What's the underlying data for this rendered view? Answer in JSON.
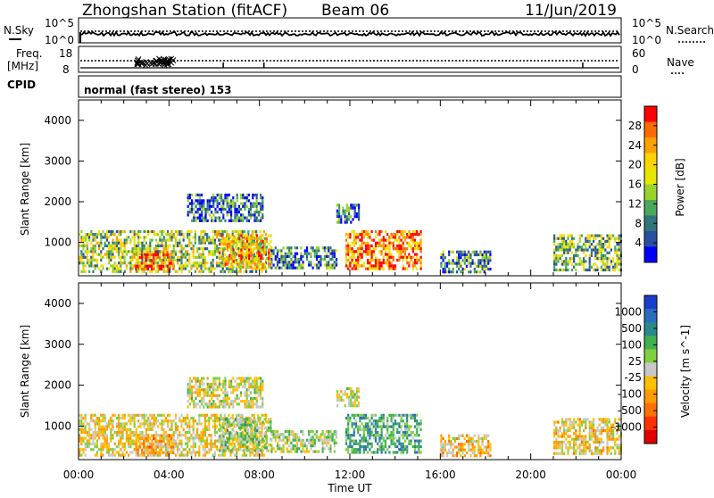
{
  "header": {
    "title": "Zhongshan Station (fitACF)",
    "beam": "Beam 06",
    "date": "11/Jun/2019"
  },
  "noise_panel": {
    "left_label": "N.Sky",
    "right_label": "N.Search",
    "left_ticks": [
      "10^5",
      "10^0"
    ],
    "right_ticks": [
      "10^5",
      "10^0"
    ]
  },
  "freq_panel": {
    "left_label_1": "Freq.",
    "left_label_2": "[MHz]",
    "left_ticks": [
      "18",
      "8"
    ],
    "right_label": "Nave",
    "right_ticks": [
      "60",
      "0"
    ]
  },
  "cpid_panel": {
    "label": "CPID",
    "text": "normal (fast stereo) 153"
  },
  "x_axis": {
    "label": "Time UT",
    "ticks": [
      "00:00",
      "04:00",
      "08:00",
      "12:00",
      "16:00",
      "20:00",
      "00:00"
    ]
  },
  "power_panel": {
    "ylabel": "Slant Range [km]",
    "yticks": [
      "4000",
      "3000",
      "2000",
      "1000"
    ],
    "colorbar_label": "Power [dB]",
    "colorbar_ticks": [
      "28",
      "24",
      "20",
      "16",
      "12",
      "8",
      "4"
    ],
    "colorbar_colors": [
      "#ff0000",
      "#ff6a00",
      "#ffa100",
      "#ffd400",
      "#e6e600",
      "#9bd229",
      "#4aa85a",
      "#30747c",
      "#2a4fa0",
      "#0000ff"
    ]
  },
  "velocity_panel": {
    "ylabel": "Slant Range [km]",
    "yticks": [
      "4000",
      "3000",
      "2000",
      "1000"
    ],
    "colorbar_label": "Velocity [m s^-1]",
    "colorbar_ticks": [
      "1000",
      "500",
      "100",
      "25",
      "-25",
      "-100",
      "-500",
      "-1000"
    ],
    "colorbar_colors": [
      "#1a3cd0",
      "#2a6cc0",
      "#2a8a8a",
      "#40b050",
      "#80d040",
      "#c8c8c8",
      "#ffc000",
      "#ff9a00",
      "#ff7000",
      "#ff3000",
      "#e00000"
    ]
  },
  "chart_data": [
    {
      "type": "heatmap",
      "title": "Power [dB]",
      "xlabel": "Time UT",
      "ylabel": "Slant Range [km]",
      "x_range_hours": [
        0,
        24
      ],
      "y_range_km": [
        180,
        4500
      ],
      "color_range": [
        0,
        30
      ],
      "regions": [
        {
          "t_start": 0.0,
          "t_end": 8.3,
          "r_min": 300,
          "r_max": 1300,
          "power_dB": 14
        },
        {
          "t_start": 2.5,
          "t_end": 4.2,
          "r_min": 350,
          "r_max": 800,
          "power_dB": 24
        },
        {
          "t_start": 6.2,
          "t_end": 8.5,
          "r_min": 400,
          "r_max": 1200,
          "power_dB": 20
        },
        {
          "t_start": 4.8,
          "t_end": 8.1,
          "r_min": 1500,
          "r_max": 2200,
          "power_dB": 6
        },
        {
          "t_start": 8.5,
          "t_end": 11.4,
          "r_min": 350,
          "r_max": 900,
          "power_dB": 8
        },
        {
          "t_start": 11.4,
          "t_end": 12.4,
          "r_min": 1500,
          "r_max": 1950,
          "power_dB": 6
        },
        {
          "t_start": 11.8,
          "t_end": 15.1,
          "r_min": 350,
          "r_max": 1300,
          "power_dB": 24
        },
        {
          "t_start": 16.0,
          "t_end": 18.2,
          "r_min": 300,
          "r_max": 800,
          "power_dB": 8
        },
        {
          "t_start": 21.0,
          "t_end": 24.0,
          "r_min": 300,
          "r_max": 1200,
          "power_dB": 12
        }
      ]
    },
    {
      "type": "heatmap",
      "title": "Velocity [m s^-1]",
      "xlabel": "Time UT",
      "ylabel": "Slant Range [km]",
      "x_range_hours": [
        0,
        24
      ],
      "y_range_km": [
        180,
        4500
      ],
      "color_range": [
        -1000,
        1000
      ],
      "regions": [
        {
          "t_start": 0.0,
          "t_end": 8.3,
          "r_min": 300,
          "r_max": 1300,
          "velocity_ms": -100
        },
        {
          "t_start": 2.5,
          "t_end": 4.2,
          "r_min": 350,
          "r_max": 800,
          "velocity_ms": -300
        },
        {
          "t_start": 6.2,
          "t_end": 8.5,
          "r_min": 400,
          "r_max": 1200,
          "velocity_ms": 150
        },
        {
          "t_start": 4.8,
          "t_end": 8.1,
          "r_min": 1500,
          "r_max": 2200,
          "velocity_ms": 0
        },
        {
          "t_start": 8.5,
          "t_end": 11.4,
          "r_min": 350,
          "r_max": 900,
          "velocity_ms": 100
        },
        {
          "t_start": 11.4,
          "t_end": 12.4,
          "r_min": 1500,
          "r_max": 1950,
          "velocity_ms": 0
        },
        {
          "t_start": 11.8,
          "t_end": 15.1,
          "r_min": 350,
          "r_max": 1300,
          "velocity_ms": 400
        },
        {
          "t_start": 16.0,
          "t_end": 18.2,
          "r_min": 300,
          "r_max": 800,
          "velocity_ms": -200
        },
        {
          "t_start": 21.0,
          "t_end": 24.0,
          "r_min": 300,
          "r_max": 1200,
          "velocity_ms": -150
        }
      ]
    }
  ]
}
